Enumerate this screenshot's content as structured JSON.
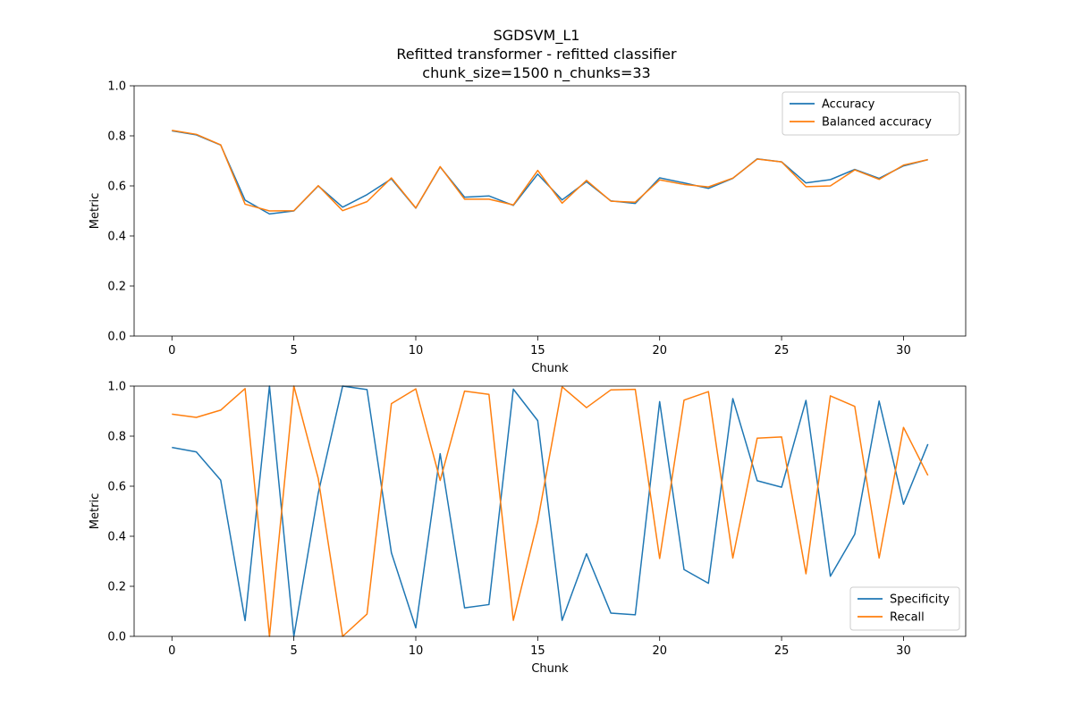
{
  "figure": {
    "title_lines": [
      "SGDSVM_L1",
      "Refitted transformer - refitted classifier",
      "chunk_size=1500 n_chunks=33"
    ]
  },
  "chart_data": [
    {
      "type": "line",
      "xlabel": "Chunk",
      "ylabel": "Metric",
      "xlim": [
        -1.55,
        32.55
      ],
      "ylim": [
        0,
        1
      ],
      "xticks": [
        0,
        5,
        10,
        15,
        20,
        25,
        30
      ],
      "yticks": [
        0.0,
        0.2,
        0.4,
        0.6,
        0.8,
        1.0
      ],
      "grid": false,
      "legend_position": "top-right",
      "x": [
        0,
        1,
        2,
        3,
        4,
        5,
        6,
        7,
        8,
        9,
        10,
        11,
        12,
        13,
        14,
        15,
        16,
        17,
        18,
        19,
        20,
        21,
        22,
        23,
        24,
        25,
        26,
        27,
        28,
        29,
        30,
        31
      ],
      "series": [
        {
          "name": "Accuracy",
          "color": "#1f77b4",
          "values": [
            0.82,
            0.804,
            0.763,
            0.543,
            0.488,
            0.5,
            0.6,
            0.515,
            0.565,
            0.628,
            0.511,
            0.676,
            0.555,
            0.56,
            0.522,
            0.647,
            0.544,
            0.617,
            0.54,
            0.53,
            0.632,
            0.612,
            0.59,
            0.63,
            0.708,
            0.696,
            0.612,
            0.625,
            0.666,
            0.63,
            0.68,
            0.705
          ]
        },
        {
          "name": "Balanced accuracy",
          "color": "#ff7f0e",
          "values": [
            0.822,
            0.806,
            0.764,
            0.527,
            0.5,
            0.501,
            0.601,
            0.501,
            0.537,
            0.632,
            0.512,
            0.677,
            0.547,
            0.547,
            0.524,
            0.662,
            0.531,
            0.622,
            0.539,
            0.535,
            0.624,
            0.606,
            0.596,
            0.631,
            0.707,
            0.696,
            0.597,
            0.6,
            0.664,
            0.626,
            0.683,
            0.705
          ]
        }
      ]
    },
    {
      "type": "line",
      "xlabel": "Chunk",
      "ylabel": "Metric",
      "xlim": [
        -1.55,
        32.55
      ],
      "ylim": [
        0,
        1
      ],
      "xticks": [
        0,
        5,
        10,
        15,
        20,
        25,
        30
      ],
      "yticks": [
        0.0,
        0.2,
        0.4,
        0.6,
        0.8,
        1.0
      ],
      "grid": false,
      "legend_position": "bottom-right",
      "x": [
        0,
        1,
        2,
        3,
        4,
        5,
        6,
        7,
        8,
        9,
        10,
        11,
        12,
        13,
        14,
        15,
        16,
        17,
        18,
        19,
        20,
        21,
        22,
        23,
        24,
        25,
        26,
        27,
        28,
        29,
        30,
        31
      ],
      "series": [
        {
          "name": "Specificity",
          "color": "#1f77b4",
          "values": [
            0.755,
            0.737,
            0.624,
            0.063,
            1.0,
            0.0,
            0.572,
            1.0,
            0.986,
            0.334,
            0.034,
            0.73,
            0.114,
            0.127,
            0.988,
            0.862,
            0.064,
            0.33,
            0.093,
            0.086,
            0.938,
            0.267,
            0.212,
            0.95,
            0.622,
            0.596,
            0.943,
            0.24,
            0.408,
            0.94,
            0.528,
            0.768
          ]
        },
        {
          "name": "Recall",
          "color": "#ff7f0e",
          "values": [
            0.888,
            0.875,
            0.904,
            0.99,
            0.0,
            1.0,
            0.631,
            0.0,
            0.089,
            0.93,
            0.989,
            0.623,
            0.98,
            0.967,
            0.064,
            0.46,
            0.997,
            0.914,
            0.985,
            0.987,
            0.311,
            0.944,
            0.978,
            0.313,
            0.792,
            0.797,
            0.25,
            0.961,
            0.919,
            0.313,
            0.835,
            0.643
          ]
        }
      ]
    }
  ]
}
